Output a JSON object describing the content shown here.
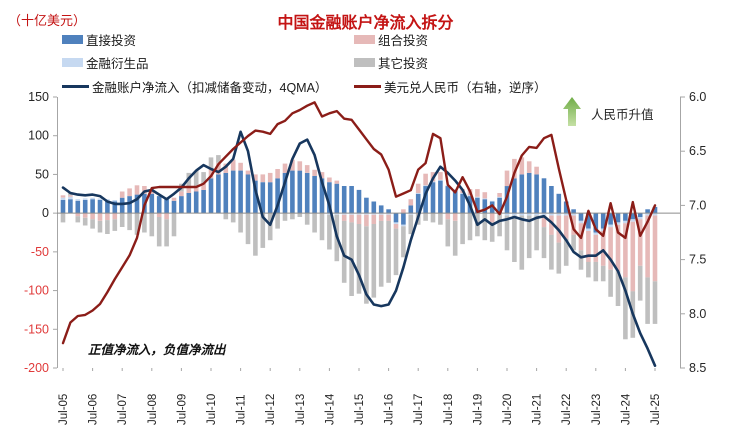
{
  "header": {
    "unit_label": "（十亿美元）",
    "title": "中国金融账户净流入拆分"
  },
  "annotations": {
    "cny_appreciation": "人民币升值",
    "note": "正值净流入，负值净流出"
  },
  "colors": {
    "title_red": "#c41414",
    "negative_tick_red": "#e03a3a",
    "positive_tick": "#262626",
    "axis_line": "#a6a6a6",
    "zero_line": "#8c8c8c",
    "arrow_green_light": "#a9d18e",
    "arrow_green_dark": "#70ad47"
  },
  "chart_data": {
    "type": "combo: stacked quarterly bars (left axis) + 2 lines (left & inverted right axis)",
    "x_start": "2005-Q3",
    "x_step": "quarter",
    "n_points": 81,
    "x_tick_labels": [
      "Jul-05",
      "Jul-06",
      "Jul-07",
      "Jul-08",
      "Jul-09",
      "Jul-10",
      "Jul-11",
      "Jul-12",
      "Jul-13",
      "Jul-14",
      "Jul-15",
      "Jul-16",
      "Jul-17",
      "Jul-18",
      "Jul-19",
      "Jul-20",
      "Jul-21",
      "Jul-22",
      "Jul-23",
      "Jul-24",
      "Jul-25"
    ],
    "left_axis": {
      "title": "十亿美元",
      "min": -200,
      "max": 150,
      "ticks": [
        150,
        100,
        50,
        0,
        -50,
        -100,
        -150,
        -200
      ]
    },
    "right_axis": {
      "min": 6.0,
      "max": 8.5,
      "inverted": true,
      "ticks": [
        "6.0",
        "6.5",
        "7.0",
        "7.5",
        "8.0",
        "8.5"
      ]
    },
    "bar_series": [
      {
        "name": "直接投资",
        "color": "#4f81bd",
        "values": [
          17,
          18,
          16,
          17,
          18,
          17,
          16,
          15,
          20,
          22,
          24,
          25,
          25,
          22,
          18,
          16,
          22,
          26,
          28,
          30,
          45,
          50,
          52,
          55,
          55,
          50,
          42,
          40,
          40,
          45,
          52,
          55,
          55,
          52,
          48,
          45,
          40,
          38,
          35,
          35,
          30,
          20,
          15,
          10,
          5,
          -12,
          -15,
          10,
          25,
          35,
          40,
          42,
          35,
          30,
          25,
          22,
          20,
          18,
          15,
          20,
          35,
          45,
          50,
          52,
          50,
          45,
          35,
          25,
          15,
          5,
          -10,
          -20,
          -25,
          -20,
          -15,
          -12,
          -10,
          -8,
          -5,
          5,
          8
        ]
      },
      {
        "name": "金融衍生品",
        "color": "#c6d9f1",
        "values": [
          3,
          3,
          2,
          2,
          2,
          2,
          2,
          2,
          0,
          0,
          0,
          0,
          0,
          0,
          0,
          0,
          0,
          0,
          0,
          0,
          0,
          0,
          0,
          0,
          0,
          0,
          0,
          0,
          0,
          0,
          0,
          0,
          0,
          0,
          0,
          0,
          -2,
          -2,
          -2,
          -2,
          -2,
          -2,
          -2,
          -2,
          -2,
          -2,
          -2,
          -2,
          1,
          1,
          1,
          1,
          1,
          1,
          1,
          1,
          1,
          1,
          1,
          1,
          -3,
          -3,
          -3,
          -3,
          -3,
          -3,
          -3,
          -3,
          -3,
          -3,
          -3,
          -3,
          -3,
          -3,
          -3,
          -3,
          -3,
          -3,
          -3,
          -3,
          -3
        ]
      },
      {
        "name": "组合投资",
        "color": "#e6b9b8",
        "values": [
          3,
          2,
          -4,
          -6,
          -8,
          -10,
          -9,
          -8,
          8,
          10,
          12,
          10,
          6,
          -5,
          -8,
          4,
          6,
          8,
          5,
          8,
          12,
          15,
          12,
          14,
          10,
          5,
          8,
          10,
          12,
          12,
          12,
          14,
          12,
          10,
          8,
          8,
          6,
          4,
          -8,
          -10,
          -12,
          -15,
          -12,
          -8,
          -8,
          -6,
          5,
          8,
          12,
          15,
          12,
          10,
          -8,
          -10,
          5,
          8,
          10,
          8,
          -12,
          5,
          20,
          25,
          22,
          15,
          10,
          -15,
          -25,
          -35,
          -30,
          -25,
          -35,
          -40,
          -35,
          -45,
          -55,
          -60,
          -70,
          -90,
          -60,
          -80,
          -85
        ]
      },
      {
        "name": "其它投资",
        "color": "#bfbfbf",
        "values": [
          -12,
          3,
          -8,
          -10,
          -12,
          -15,
          -18,
          -15,
          -18,
          -22,
          -28,
          -25,
          -30,
          -38,
          -35,
          -30,
          10,
          18,
          22,
          15,
          15,
          10,
          -8,
          -12,
          -25,
          -40,
          -55,
          -45,
          -35,
          -20,
          -10,
          -8,
          -5,
          -15,
          -25,
          -35,
          -45,
          -60,
          -80,
          -95,
          -90,
          -100,
          -95,
          -85,
          -80,
          -60,
          -40,
          -25,
          -15,
          -10,
          -12,
          -15,
          -35,
          -45,
          -40,
          -35,
          -30,
          -35,
          -25,
          -30,
          -45,
          -60,
          -70,
          -55,
          -45,
          -40,
          -45,
          -40,
          -35,
          -20,
          -25,
          -20,
          -25,
          -20,
          -35,
          -45,
          -80,
          -60,
          -45,
          -60,
          -55
        ]
      }
    ],
    "line_series": [
      {
        "name": "金融账户净流入（扣减储备变动，4QMA）",
        "axis": "left",
        "color": "#17375e",
        "values": [
          33,
          26,
          24,
          23,
          24,
          22,
          15,
          12,
          12,
          13,
          18,
          28,
          30,
          24,
          18,
          25,
          33,
          45,
          55,
          62,
          57,
          53,
          60,
          70,
          105,
          80,
          30,
          -5,
          -15,
          10,
          40,
          70,
          90,
          95,
          75,
          40,
          10,
          -30,
          -55,
          -60,
          -80,
          -105,
          -118,
          -120,
          -118,
          -100,
          -70,
          -35,
          -5,
          25,
          45,
          60,
          52,
          42,
          30,
          10,
          -15,
          -8,
          -15,
          -10,
          -8,
          -5,
          -8,
          -10,
          -6,
          -4,
          -12,
          -22,
          -35,
          -50,
          -57,
          -55,
          -55,
          -48,
          -60,
          -75,
          -100,
          -130,
          -155,
          -175,
          -197
        ]
      },
      {
        "name": "美元兑人民币（右轴，逆序）",
        "axis": "right",
        "color": "#8b1d18",
        "values": [
          8.27,
          8.08,
          8.02,
          8.01,
          7.97,
          7.91,
          7.8,
          7.68,
          7.57,
          7.46,
          7.3,
          7.0,
          6.84,
          6.83,
          6.83,
          6.83,
          6.83,
          6.83,
          6.83,
          6.8,
          6.73,
          6.62,
          6.55,
          6.48,
          6.42,
          6.36,
          6.31,
          6.32,
          6.34,
          6.25,
          6.22,
          6.15,
          6.12,
          6.08,
          6.05,
          6.18,
          6.15,
          6.13,
          6.2,
          6.21,
          6.3,
          6.39,
          6.48,
          6.53,
          6.67,
          6.92,
          6.89,
          6.86,
          6.67,
          6.61,
          6.34,
          6.38,
          6.81,
          6.88,
          6.74,
          6.87,
          7.06,
          7.04,
          7.0,
          7.08,
          6.92,
          6.7,
          6.54,
          6.46,
          6.47,
          6.38,
          6.35,
          6.66,
          6.95,
          7.22,
          7.3,
          7.05,
          7.22,
          7.28,
          6.98,
          7.25,
          7.3,
          6.97,
          7.28,
          7.15,
          7.0
        ]
      }
    ]
  }
}
